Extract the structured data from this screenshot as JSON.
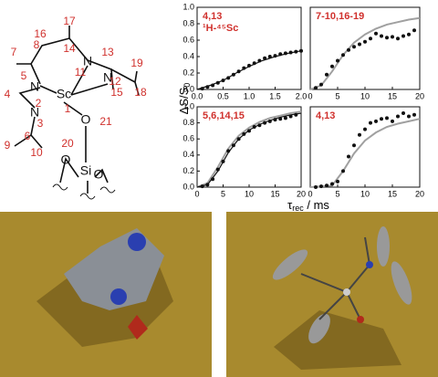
{
  "structure": {
    "atoms": [
      "N",
      "Sc",
      "N",
      "N",
      "N",
      "O",
      "Si",
      "O",
      "O"
    ],
    "numbers": [
      "17",
      "16",
      "14",
      "8",
      "7",
      "13",
      "11",
      "19",
      "5",
      "12",
      "15",
      "18",
      "4",
      "2",
      "1",
      "3",
      "21",
      "6",
      "20",
      "9",
      "10"
    ]
  },
  "shared_axes": {
    "ylabel": {
      "main": "ΔS/S",
      "sub": "0"
    },
    "xlabel": {
      "main": "τ",
      "sub": "rec",
      "unit": " / ms"
    }
  },
  "chart_data": [
    {
      "type": "line",
      "annotation": [
        "4,13",
        "¹H-⁴⁵Sc"
      ],
      "xlim": [
        0,
        2
      ],
      "xticks": [
        {
          "value": 0,
          "label": "0.0"
        },
        {
          "value": 0.5,
          "label": "0.5"
        },
        {
          "value": 1,
          "label": "1.0"
        },
        {
          "value": 1.5,
          "label": "1.5"
        },
        {
          "value": 2,
          "label": "2.0"
        }
      ],
      "ylim": [
        0,
        1
      ],
      "yticks": [
        {
          "value": 0,
          "label": "0.0"
        },
        {
          "value": 0.2,
          "label": "0.2"
        },
        {
          "value": 0.4,
          "label": "0.4"
        },
        {
          "value": 0.6,
          "label": "0.6"
        },
        {
          "value": 0.8,
          "label": "0.8"
        },
        {
          "value": 1,
          "label": "1.0"
        }
      ],
      "series": [
        {
          "style": "line",
          "color": "#111111",
          "x": [
            0,
            0.25,
            0.5,
            0.75,
            1,
            1.25,
            1.5,
            1.75,
            2
          ],
          "values": [
            0,
            0.05,
            0.11,
            0.2,
            0.28,
            0.35,
            0.4,
            0.44,
            0.47
          ]
        },
        {
          "style": "markers",
          "color": "#111111",
          "x": [
            0.1,
            0.2,
            0.3,
            0.4,
            0.5,
            0.6,
            0.7,
            0.8,
            0.9,
            1,
            1.1,
            1.2,
            1.3,
            1.4,
            1.5,
            1.6,
            1.7,
            1.8,
            1.9,
            2
          ],
          "values": [
            0.01,
            0.03,
            0.05,
            0.08,
            0.11,
            0.14,
            0.18,
            0.22,
            0.26,
            0.29,
            0.32,
            0.35,
            0.38,
            0.4,
            0.41,
            0.43,
            0.44,
            0.45,
            0.46,
            0.47
          ]
        }
      ]
    },
    {
      "type": "line",
      "annotation": [
        "7-10,16-19"
      ],
      "xlim": [
        0,
        20
      ],
      "xticks": [
        0,
        5,
        10,
        15,
        20
      ],
      "ylim": [
        0,
        1
      ],
      "series": [
        {
          "style": "line",
          "color": "#a0a0a0",
          "x": [
            0,
            2,
            4,
            6,
            8,
            10,
            12,
            14,
            16,
            18,
            20
          ],
          "values": [
            0,
            0.05,
            0.22,
            0.42,
            0.57,
            0.67,
            0.74,
            0.79,
            0.82,
            0.85,
            0.87
          ]
        },
        {
          "style": "markers",
          "color": "#111111",
          "x": [
            1,
            2,
            3,
            4,
            5,
            6,
            7,
            8,
            9,
            10,
            11,
            12,
            13,
            14,
            15,
            16,
            17,
            18,
            19
          ],
          "values": [
            0.02,
            0.06,
            0.18,
            0.28,
            0.35,
            0.42,
            0.48,
            0.52,
            0.55,
            0.58,
            0.62,
            0.68,
            0.65,
            0.63,
            0.64,
            0.62,
            0.65,
            0.67,
            0.72
          ]
        }
      ]
    },
    {
      "type": "line",
      "annotation": [
        "5,6,14,15"
      ],
      "xlim": [
        0,
        20
      ],
      "xticks": [
        0,
        5,
        10,
        15,
        20
      ],
      "ylim": [
        0,
        1
      ],
      "yticks": [
        {
          "value": 0,
          "label": "0.0"
        },
        {
          "value": 0.2,
          "label": "0.2"
        },
        {
          "value": 0.4,
          "label": "0.4"
        },
        {
          "value": 0.6,
          "label": "0.6"
        },
        {
          "value": 0.8,
          "label": "0.8"
        },
        {
          "value": 1,
          "label": "1.0"
        }
      ],
      "series": [
        {
          "style": "line",
          "color": "#a0a0a0",
          "x": [
            0,
            2,
            4,
            6,
            8,
            10,
            12,
            14,
            16,
            18,
            20
          ],
          "values": [
            0,
            0.05,
            0.25,
            0.48,
            0.64,
            0.74,
            0.81,
            0.86,
            0.89,
            0.92,
            0.94
          ]
        },
        {
          "style": "line",
          "color": "#111111",
          "x": [
            0,
            2,
            4,
            6,
            8,
            10,
            12,
            14,
            16,
            18,
            20
          ],
          "values": [
            0,
            0.03,
            0.2,
            0.43,
            0.6,
            0.71,
            0.78,
            0.83,
            0.87,
            0.9,
            0.92
          ]
        },
        {
          "style": "markers",
          "color": "#111111",
          "x": [
            1,
            2,
            3,
            4,
            5,
            6,
            7,
            8,
            9,
            10,
            11,
            12,
            13,
            14,
            15,
            16,
            17,
            18,
            19
          ],
          "values": [
            0.01,
            0.03,
            0.1,
            0.22,
            0.32,
            0.45,
            0.52,
            0.6,
            0.66,
            0.7,
            0.75,
            0.77,
            0.8,
            0.82,
            0.84,
            0.85,
            0.86,
            0.88,
            0.9
          ]
        }
      ]
    },
    {
      "type": "line",
      "annotation": [
        "4,13"
      ],
      "xlim": [
        0,
        20
      ],
      "xticks": [
        0,
        5,
        10,
        15,
        20
      ],
      "ylim": [
        0,
        1
      ],
      "series": [
        {
          "style": "line",
          "color": "#a0a0a0",
          "x": [
            0,
            4,
            6,
            8,
            10,
            12,
            14,
            16,
            18,
            20
          ],
          "values": [
            0,
            0.02,
            0.2,
            0.42,
            0.58,
            0.68,
            0.75,
            0.79,
            0.82,
            0.85
          ]
        },
        {
          "style": "markers",
          "color": "#111111",
          "x": [
            1,
            2,
            3,
            4,
            5,
            6,
            7,
            8,
            9,
            10,
            11,
            12,
            13,
            14,
            15,
            16,
            17,
            18,
            19
          ],
          "values": [
            0,
            0.01,
            0.02,
            0.04,
            0.07,
            0.2,
            0.38,
            0.52,
            0.65,
            0.72,
            0.8,
            0.82,
            0.85,
            0.86,
            0.82,
            0.88,
            0.92,
            0.88,
            0.9
          ]
        }
      ]
    }
  ]
}
